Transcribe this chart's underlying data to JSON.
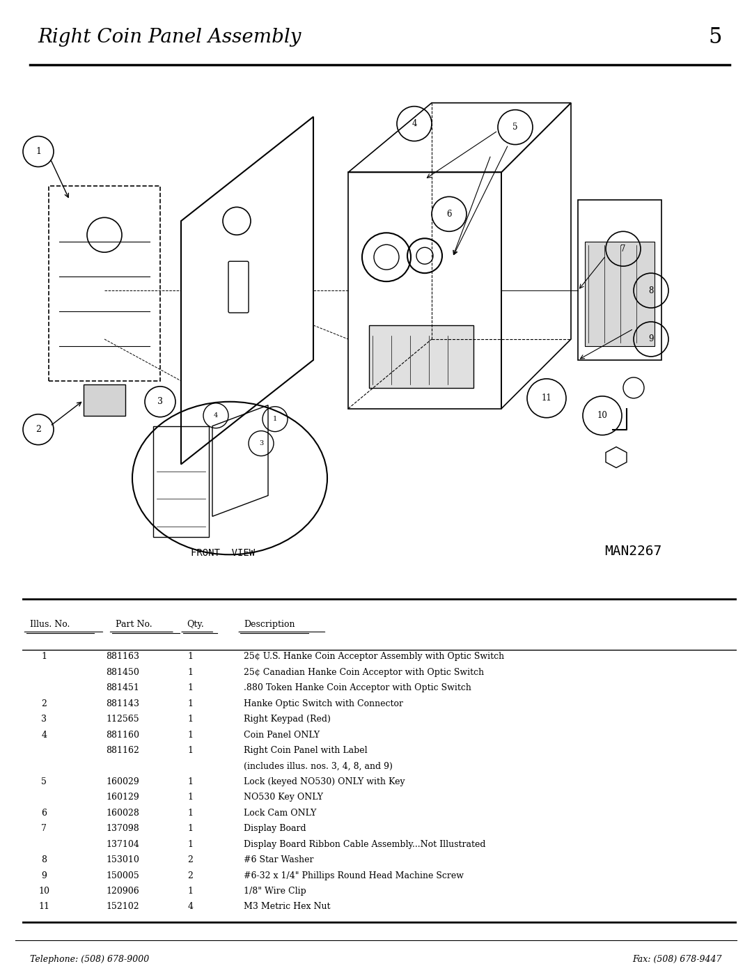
{
  "title": "Right Coin Panel Assembly",
  "page_number": "5",
  "man_number": "MAN2267",
  "footer_left": "Telephone: (508) 678-9000",
  "footer_right": "Fax: (508) 678-9447",
  "table_headers": [
    "Illus. No.",
    "Part No.",
    "Qty.",
    "Description"
  ],
  "table_rows": [
    [
      "1",
      "881163",
      "1",
      "25¢ U.S. Hanke Coin Acceptor Assembly with Optic Switch"
    ],
    [
      "",
      "881450",
      "1",
      "25¢ Canadian Hanke Coin Acceptor with Optic Switch"
    ],
    [
      "",
      "881451",
      "1",
      ".880 Token Hanke Coin Acceptor with Optic Switch"
    ],
    [
      "2",
      "881143",
      "1",
      "Hanke Optic Switch with Connector"
    ],
    [
      "3",
      "112565",
      "1",
      "Right Keypad (Red)"
    ],
    [
      "4",
      "881160",
      "1",
      "Coin Panel ONLY"
    ],
    [
      "",
      "881162",
      "1",
      "Right Coin Panel with Label"
    ],
    [
      "",
      "",
      "",
      "(includes illus. nos. 3, 4, 8, and 9)"
    ],
    [
      "5",
      "160029",
      "1",
      "Lock (keyed NO530) ONLY with Key"
    ],
    [
      "",
      "160129",
      "1",
      "NO530 Key ONLY"
    ],
    [
      "6",
      "160028",
      "1",
      "Lock Cam ONLY"
    ],
    [
      "7",
      "137098",
      "1",
      "Display Board"
    ],
    [
      "",
      "137104",
      "1",
      "Display Board Ribbon Cable Assembly...Not Illustrated"
    ],
    [
      "8",
      "153010",
      "2",
      "#6 Star Washer"
    ],
    [
      "9",
      "150005",
      "2",
      "#6-32 x 1/4\" Phillips Round Head Machine Screw"
    ],
    [
      "10",
      "120906",
      "1",
      "1/8\" Wire Clip"
    ],
    [
      "11",
      "152102",
      "4",
      "M3 Metric Hex Nut"
    ]
  ],
  "bg_color": "#ffffff",
  "text_color": "#000000",
  "line_color": "#000000"
}
